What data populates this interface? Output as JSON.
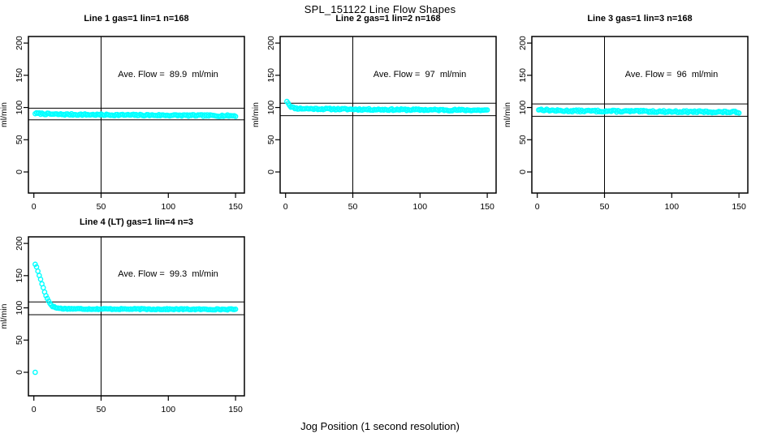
{
  "page": {
    "title": "SPL_151122  Line Flow Shapes",
    "xlabel": "Jog Position (1 second resolution)",
    "background": "#ffffff",
    "point_color": "#00ffff",
    "line_color": "#000000"
  },
  "axes": {
    "x_ticks": [
      0,
      50,
      100,
      150
    ],
    "y_ticks": [
      0,
      50,
      100,
      150,
      200
    ],
    "ylabel": "ml/min",
    "vline_x": 50,
    "xlim": [
      -6,
      156
    ],
    "ylim": [
      -33,
      210
    ]
  },
  "chart_data": [
    {
      "type": "scatter",
      "title": "Line 1 gas=1 lin=1 n=168",
      "annotation": "Ave. Flow =  89.9  ml/min",
      "ave_flow_ml_min": 89.9,
      "ylabel": "ml/min",
      "x_start": 1,
      "x_end": 150,
      "profile": [
        [
          1,
          91
        ],
        [
          15,
          89.5
        ],
        [
          60,
          88.5
        ],
        [
          150,
          87.2
        ]
      ],
      "jitter": 1.2,
      "outliers": [],
      "hlines": [
        98.9,
        80.9
      ],
      "vline": 50,
      "seed": 7
    },
    {
      "type": "scatter",
      "title": "Line 2 gas=1 lin=2 n=168",
      "annotation": "Ave. Flow =  97  ml/min",
      "ave_flow_ml_min": 97,
      "ylabel": "ml/min",
      "x_start": 1,
      "x_end": 150,
      "profile": [
        [
          1,
          110
        ],
        [
          2,
          107
        ],
        [
          3,
          103.5
        ],
        [
          4,
          101.5
        ],
        [
          6,
          99.5
        ],
        [
          9,
          98.5
        ],
        [
          20,
          98
        ],
        [
          60,
          97
        ],
        [
          150,
          95.8
        ]
      ],
      "jitter": 1.2,
      "outliers": [],
      "hlines": [
        106.7,
        87.3
      ],
      "vline": 50,
      "seed": 11
    },
    {
      "type": "scatter",
      "title": "Line 3 gas=1 lin=3 n=168",
      "annotation": "Ave. Flow =  96  ml/min",
      "ave_flow_ml_min": 96,
      "ylabel": "ml/min",
      "x_start": 1,
      "x_end": 150,
      "profile": [
        [
          1,
          97
        ],
        [
          15,
          95
        ],
        [
          80,
          94
        ],
        [
          150,
          92.8
        ]
      ],
      "jitter": 1.4,
      "outliers": [],
      "hlines": [
        105.6,
        86.4
      ],
      "vline": 50,
      "seed": 13
    },
    {
      "type": "scatter",
      "title": "Line 4 (LT) gas=1 lin=4 n=3",
      "annotation": "Ave. Flow =  99.3  ml/min",
      "ave_flow_ml_min": 99.3,
      "ylabel": "ml/min",
      "x_start": 1,
      "x_end": 150,
      "profile": [
        [
          1,
          168
        ],
        [
          2,
          163
        ],
        [
          3,
          157
        ],
        [
          4,
          150.5
        ],
        [
          5,
          144
        ],
        [
          6,
          137.5
        ],
        [
          7,
          131
        ],
        [
          8,
          125
        ],
        [
          9,
          119.5
        ],
        [
          10,
          114.5
        ],
        [
          11,
          110.5
        ],
        [
          12,
          107
        ],
        [
          13,
          104.5
        ],
        [
          14,
          102.5
        ],
        [
          16,
          100.5
        ],
        [
          18,
          99.5
        ],
        [
          22,
          98.8
        ],
        [
          40,
          98.3
        ],
        [
          150,
          97.6
        ]
      ],
      "jitter": 0.8,
      "outliers": [
        [
          1,
          0
        ]
      ],
      "hlines": [
        109.2,
        89.4
      ],
      "vline": 50,
      "seed": 17
    }
  ]
}
